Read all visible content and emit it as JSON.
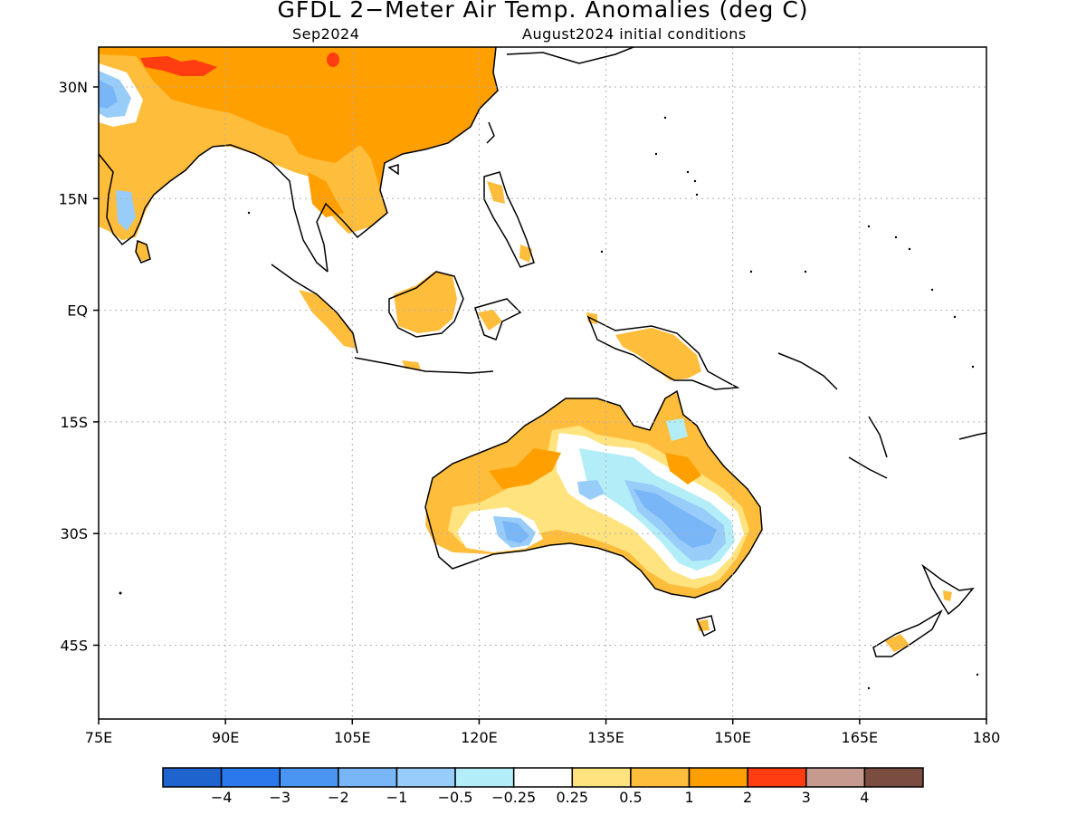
{
  "header": {
    "title": "GFDL 2−Meter Air Temp. Anomalies (deg C)",
    "valid_month": "Sep2024",
    "init_conditions": "August2024 initial conditions"
  },
  "axes": {
    "lon_ticks": [
      "75E",
      "90E",
      "105E",
      "120E",
      "135E",
      "150E",
      "165E",
      "180"
    ],
    "lat_ticks": [
      "30N",
      "15N",
      "EQ",
      "15S",
      "30S",
      "45S"
    ]
  },
  "colorbar": {
    "colors": [
      "#1f63cf",
      "#2a78eb",
      "#4b95f2",
      "#78b6f7",
      "#99cdf9",
      "#b3eef8",
      "#ffffff",
      "#ffe37e",
      "#ffbd3c",
      "#ff9f00",
      "#ff3d10",
      "#c79a8f",
      "#7a4d40"
    ],
    "labels": [
      "−4",
      "−3",
      "−2",
      "−1",
      "−0.5",
      "−0.25",
      "0.25",
      "0.5",
      "1",
      "2",
      "3",
      "4"
    ]
  }
}
